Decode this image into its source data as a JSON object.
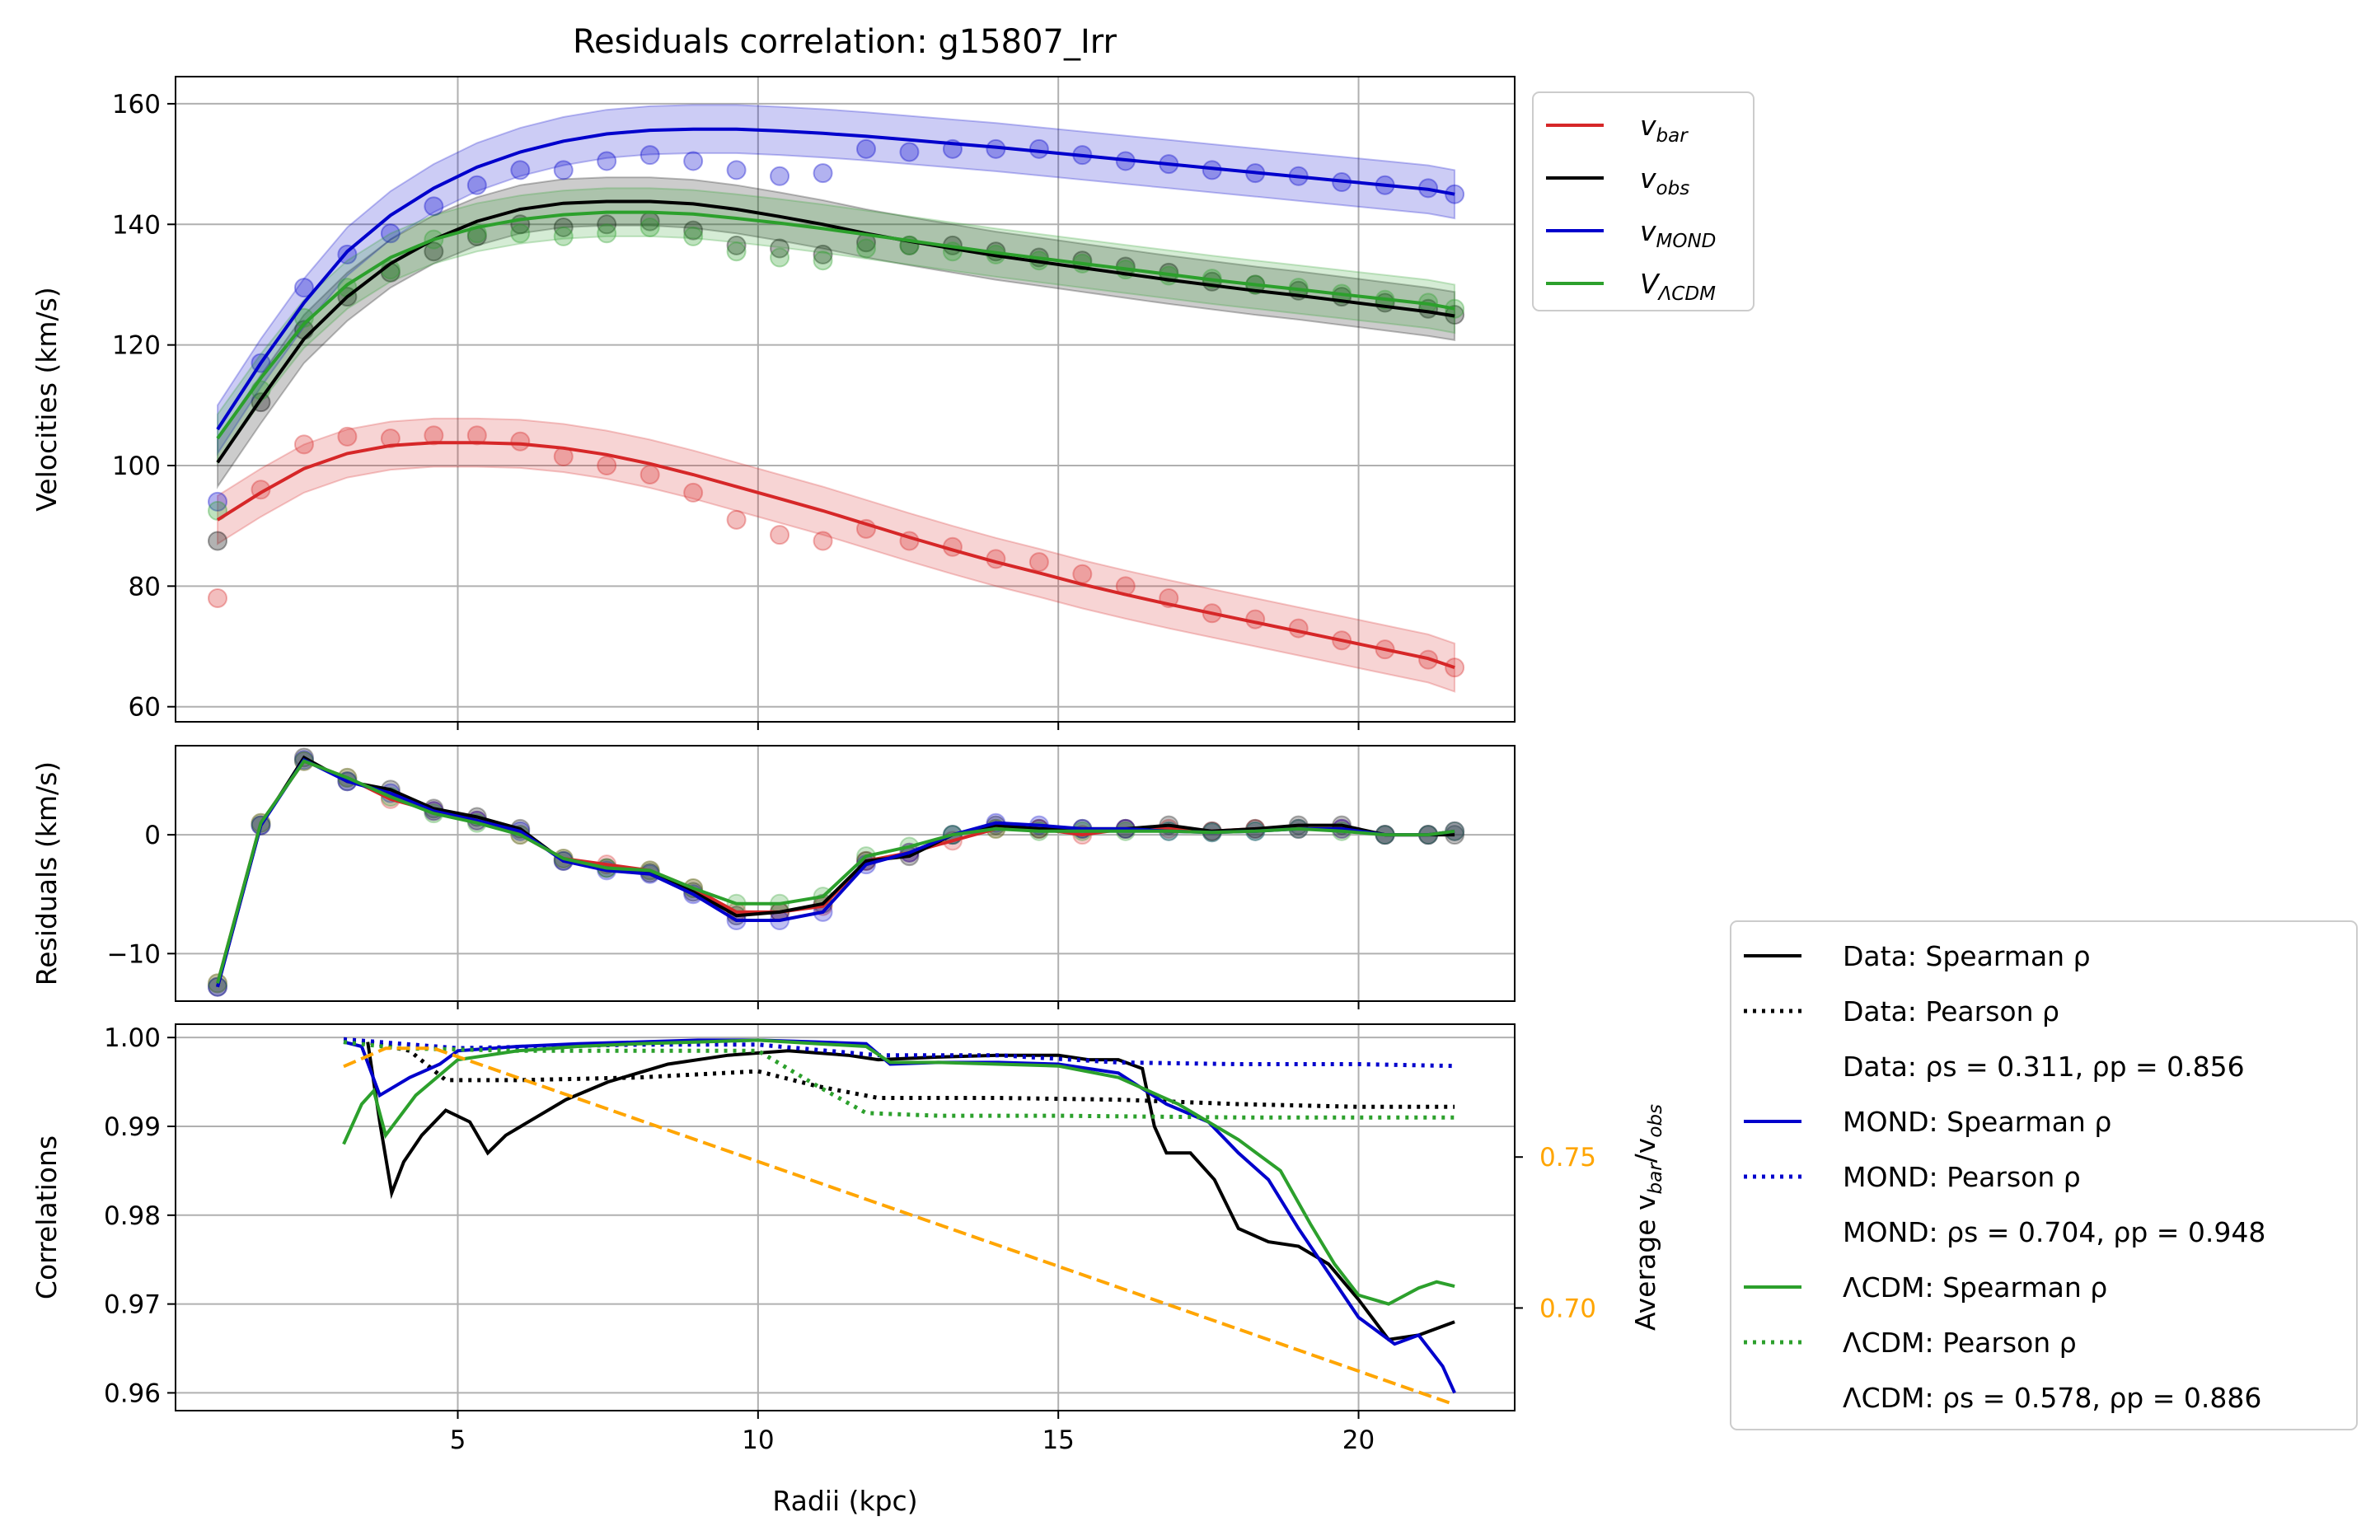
{
  "chart_data": [
    {
      "type": "scatter",
      "panel": "velocities",
      "title": "Residuals correlation: g15807_Irr",
      "xlabel": "",
      "ylabel": "Velocities (km/s)",
      "xlim": [
        0.3,
        22.6
      ],
      "ylim": [
        57.5,
        164.5
      ],
      "yticks": [
        60,
        80,
        100,
        120,
        140,
        160
      ],
      "xticks": [
        5,
        10,
        15,
        20
      ],
      "grid": true,
      "legend_position": "outside-right-top",
      "legend": [
        {
          "series": "vbar",
          "base": "v",
          "sub": "bar",
          "color": "#d62728"
        },
        {
          "series": "vobs",
          "base": "v",
          "sub": "obs",
          "color": "#000000"
        },
        {
          "series": "vmond",
          "base": "v",
          "sub": "MOND",
          "color": "#0000cc"
        },
        {
          "series": "vlcdm",
          "base": "V",
          "sub": "ΛCDM",
          "color": "#2ca02c"
        }
      ],
      "x": [
        1.0,
        1.72,
        2.44,
        3.16,
        3.88,
        4.6,
        5.32,
        6.04,
        6.76,
        7.48,
        8.2,
        8.92,
        9.64,
        10.36,
        11.08,
        11.8,
        12.52,
        13.24,
        13.96,
        14.68,
        15.4,
        16.12,
        16.84,
        17.56,
        18.28,
        19.0,
        19.72,
        20.44,
        21.16,
        21.6
      ],
      "series": [
        {
          "id": "vbar",
          "color": "#d62728",
          "points": [
            78,
            96,
            103.5,
            104.8,
            104.5,
            105,
            105,
            104,
            101.5,
            100,
            98.5,
            95.5,
            91,
            88.5,
            87.5,
            89.5,
            87.5,
            86.5,
            84.5,
            84,
            82,
            80,
            78,
            75.5,
            74.5,
            73,
            71,
            69.5,
            67.8,
            66.5
          ],
          "curve": [
            91,
            95.5,
            99.5,
            102,
            103.3,
            103.8,
            103.8,
            103.6,
            102.9,
            101.8,
            100.3,
            98.5,
            96.5,
            94.5,
            92.5,
            90.3,
            88.1,
            86,
            84,
            82.2,
            80.3,
            78.6,
            77,
            75.5,
            74,
            72.5,
            71,
            69.5,
            68,
            66.5
          ],
          "band": 4
        },
        {
          "id": "vobs",
          "color": "#000000",
          "points": [
            87.5,
            110.5,
            122.5,
            128,
            132,
            135.5,
            138,
            140,
            139.5,
            140,
            140.5,
            139,
            136.5,
            136,
            135,
            137,
            136.5,
            136.5,
            135.5,
            134.5,
            134,
            133,
            132,
            130.5,
            130,
            129,
            128,
            127,
            126,
            125
          ],
          "curve": [
            100.5,
            111,
            121,
            128,
            133.5,
            137.5,
            140.5,
            142.5,
            143.5,
            143.8,
            143.8,
            143.4,
            142.5,
            141.3,
            140,
            138.5,
            137.2,
            136,
            134.8,
            133.8,
            132.8,
            131.8,
            130.8,
            129.9,
            129,
            128.2,
            127.3,
            126.4,
            125.5,
            124.8
          ],
          "band": 4
        },
        {
          "id": "vmond",
          "color": "#0000cc",
          "points": [
            94,
            117,
            129.5,
            135,
            138.5,
            143,
            146.5,
            149,
            149,
            150.5,
            151.5,
            150.5,
            149,
            148,
            148.5,
            152.5,
            152,
            152.5,
            152.5,
            152.5,
            151.5,
            150.5,
            150,
            149,
            148.5,
            148,
            147,
            146.5,
            146,
            145
          ],
          "curve": [
            106,
            117,
            127,
            135.5,
            141.5,
            146,
            149.5,
            152,
            153.8,
            155,
            155.6,
            155.8,
            155.8,
            155.5,
            155.1,
            154.6,
            154,
            153.4,
            152.8,
            152.1,
            151.4,
            150.7,
            150,
            149.3,
            148.6,
            147.9,
            147.2,
            146.5,
            145.8,
            145
          ],
          "band": 4
        },
        {
          "id": "vlcdm",
          "color": "#2ca02c",
          "points": [
            92.5,
            112.5,
            124.5,
            129.5,
            132.5,
            137.5,
            138.5,
            138.5,
            138,
            138.5,
            139.5,
            138,
            135.5,
            134.5,
            134,
            136,
            136.5,
            135.5,
            135,
            134,
            133.5,
            132.5,
            131.5,
            131,
            130,
            129.5,
            128.5,
            127.5,
            127,
            126
          ],
          "curve": [
            104.5,
            114.5,
            123.5,
            130,
            134.5,
            137.5,
            139.5,
            140.8,
            141.6,
            142,
            142,
            141.7,
            141,
            140.2,
            139.3,
            138.3,
            137.3,
            136.3,
            135.3,
            134.4,
            133.5,
            132.6,
            131.7,
            130.8,
            130,
            129.2,
            128.4,
            127.6,
            126.8,
            126
          ],
          "band": 4
        }
      ]
    },
    {
      "type": "scatter",
      "panel": "residuals",
      "xlabel": "",
      "ylabel": "Residuals (km/s)",
      "xlim": [
        0.3,
        22.6
      ],
      "ylim": [
        -14,
        7.5
      ],
      "yticks": [
        -10,
        0
      ],
      "xticks": [
        5,
        10,
        15,
        20
      ],
      "grid": true,
      "x": [
        1.0,
        1.72,
        2.44,
        3.16,
        3.88,
        4.6,
        5.32,
        6.04,
        6.76,
        7.48,
        8.2,
        8.92,
        9.64,
        10.36,
        11.08,
        11.8,
        12.52,
        13.24,
        13.96,
        14.68,
        15.4,
        16.12,
        16.84,
        17.56,
        18.28,
        19.0,
        19.72,
        20.44,
        21.16,
        21.6
      ],
      "points": [
        -12.8,
        1,
        6.5,
        4.5,
        3.2,
        2,
        1,
        0,
        -2,
        -3,
        -3.5,
        -5,
        -7,
        -7,
        -6,
        -2,
        -1.5,
        0,
        1,
        0.5,
        0.3,
        0.5,
        0.5,
        0.2,
        0.5,
        0.5,
        0.5,
        0,
        0,
        0.5
      ],
      "series": [
        {
          "id": "res_bar",
          "color": "#d62728",
          "y": [
            -12.5,
            1,
            6.2,
            4.8,
            3,
            2,
            1.2,
            0,
            -2,
            -2.5,
            -3,
            -4.5,
            -6.5,
            -6.5,
            -6,
            -2.2,
            -1.5,
            -0.5,
            0.5,
            0.5,
            0,
            0.5,
            0.5,
            0.3,
            0.5,
            0.5,
            0.5,
            0,
            0,
            0.3
          ]
        },
        {
          "id": "res_obs",
          "color": "#000000",
          "y": [
            -12.8,
            0.8,
            6.5,
            4.5,
            3.8,
            2.2,
            1.5,
            0.5,
            -2.2,
            -2.8,
            -3.2,
            -4.8,
            -6.8,
            -6.5,
            -5.8,
            -2.2,
            -1.8,
            0,
            0.8,
            0.5,
            0.5,
            0.5,
            0.8,
            0.3,
            0.5,
            0.8,
            0.8,
            0,
            0,
            0
          ]
        },
        {
          "id": "res_mond",
          "color": "#0000cc",
          "y": [
            -12.8,
            0.8,
            6.3,
            4.5,
            3.5,
            2,
            1.2,
            0.3,
            -2.2,
            -3,
            -3.3,
            -5,
            -7.2,
            -7.2,
            -6.5,
            -2.5,
            -1.5,
            0,
            1,
            0.8,
            0.5,
            0.5,
            0.3,
            0.2,
            0.3,
            0.5,
            0.5,
            0,
            0,
            0.3
          ]
        },
        {
          "id": "res_lcdm",
          "color": "#2ca02c",
          "y": [
            -12.5,
            1,
            6.2,
            4.8,
            3.2,
            1.8,
            1,
            0,
            -2,
            -2.8,
            -3,
            -4.5,
            -5.8,
            -5.8,
            -5.2,
            -1.8,
            -1,
            0,
            0.5,
            0.3,
            0.3,
            0.3,
            0.3,
            0.2,
            0.3,
            0.5,
            0.3,
            0,
            0,
            0.3
          ]
        }
      ]
    },
    {
      "type": "line",
      "panel": "correlations",
      "xlabel": "Radii (kpc)",
      "ylabel": "Correlations",
      "ylabel_right": "Average v",
      "ylabel_right_sub1": "bar",
      "ylabel_right_mid": "/v",
      "ylabel_right_sub2": "obs",
      "xlim": [
        0.3,
        22.6
      ],
      "ylim": [
        0.958,
        1.0015
      ],
      "yticks": [
        "1.00",
        "0.99",
        "0.98",
        "0.97",
        "0.96"
      ],
      "ytick_values": [
        1.0,
        0.99,
        0.98,
        0.97,
        0.96
      ],
      "right_ylim": [
        0.666,
        0.794
      ],
      "right_yticks": [
        "0.75",
        "0.70"
      ],
      "right_ytick_values": [
        0.75,
        0.7
      ],
      "right_axis_color": "#ffa500",
      "xticks": [
        5,
        10,
        15,
        20
      ],
      "grid": true,
      "legend_position": "outside-right-bottom",
      "legend": [
        {
          "label": "Data: Spearman ρ",
          "color": "#000000",
          "style": "solid"
        },
        {
          "label": "Data: Pearson ρ",
          "color": "#000000",
          "style": "dotted"
        },
        {
          "label": "Data: ρs = 0.311, ρp = 0.856",
          "color": null,
          "style": "none"
        },
        {
          "label": "MOND: Spearman ρ",
          "color": "#0000cc",
          "style": "solid"
        },
        {
          "label": "MOND: Pearson ρ",
          "color": "#0000cc",
          "style": "dotted"
        },
        {
          "label": "MOND: ρs = 0.704, ρp = 0.948",
          "color": null,
          "style": "none"
        },
        {
          "label": "ΛCDM: Spearman ρ",
          "color": "#2ca02c",
          "style": "solid"
        },
        {
          "label": "ΛCDM: Pearson ρ",
          "color": "#2ca02c",
          "style": "dotted"
        },
        {
          "label": "ΛCDM: ρs = 0.578, ρp = 0.886",
          "color": null,
          "style": "none"
        }
      ],
      "series": [
        {
          "id": "data_spearman",
          "color": "#000000",
          "style": "solid",
          "x": [
            3.5,
            3.7,
            3.9,
            4.1,
            4.4,
            4.8,
            5.2,
            5.5,
            5.8,
            6.3,
            6.8,
            7.5,
            8.5,
            9.5,
            10.5,
            11.5,
            12,
            13,
            14,
            15,
            15.5,
            16,
            16.4,
            16.6,
            16.8,
            17.2,
            17.6,
            18,
            18.5,
            19,
            19.5,
            20,
            20.5,
            21,
            21.6
          ],
          "y": [
            0.9995,
            0.9905,
            0.9825,
            0.986,
            0.989,
            0.9918,
            0.9905,
            0.987,
            0.989,
            0.991,
            0.993,
            0.995,
            0.997,
            0.998,
            0.9985,
            0.998,
            0.9975,
            0.9978,
            0.998,
            0.998,
            0.9975,
            0.9975,
            0.9965,
            0.99,
            0.987,
            0.987,
            0.984,
            0.9785,
            0.977,
            0.9765,
            0.9745,
            0.9705,
            0.966,
            0.9665,
            0.968
          ]
        },
        {
          "id": "data_pearson",
          "color": "#000000",
          "style": "dotted",
          "x": [
            3.1,
            3.5,
            4.2,
            4.8,
            6,
            8,
            10,
            11,
            12,
            14,
            16,
            18,
            20,
            21.6
          ],
          "y": [
            0.9995,
            0.9995,
            0.9985,
            0.9952,
            0.9952,
            0.9955,
            0.9962,
            0.9945,
            0.9932,
            0.9932,
            0.993,
            0.9925,
            0.9922,
            0.9922
          ]
        },
        {
          "id": "mond_spearman",
          "color": "#0000cc",
          "style": "solid",
          "x": [
            3.1,
            3.4,
            3.7,
            4.2,
            4.7,
            5,
            6,
            7,
            8,
            9,
            10,
            11,
            11.8,
            12.2,
            13,
            14,
            15,
            16,
            16.8,
            17.5,
            18,
            18.5,
            19,
            19.5,
            20,
            20.6,
            21,
            21.4,
            21.6
          ],
          "y": [
            0.9995,
            0.999,
            0.9935,
            0.9955,
            0.997,
            0.9985,
            0.999,
            0.9993,
            0.9995,
            0.9997,
            0.9997,
            0.9995,
            0.9993,
            0.997,
            0.9972,
            0.9972,
            0.997,
            0.996,
            0.9925,
            0.9905,
            0.987,
            0.984,
            0.9785,
            0.9735,
            0.9685,
            0.9655,
            0.9665,
            0.963,
            0.96
          ]
        },
        {
          "id": "mond_pearson",
          "color": "#0000cc",
          "style": "dotted",
          "x": [
            3.1,
            5,
            8,
            10,
            12,
            14,
            16,
            18,
            20,
            21.6
          ],
          "y": [
            0.9998,
            0.9988,
            0.9992,
            0.9992,
            0.998,
            0.998,
            0.9972,
            0.997,
            0.997,
            0.9968
          ]
        },
        {
          "id": "lcdm_spearman",
          "color": "#2ca02c",
          "style": "solid",
          "x": [
            3.1,
            3.4,
            3.6,
            3.8,
            4.3,
            5,
            6,
            7,
            8,
            9,
            10,
            11,
            11.8,
            12.2,
            13,
            14,
            15,
            16,
            17,
            18,
            18.7,
            19.2,
            19.6,
            20,
            20.5,
            21,
            21.3,
            21.6
          ],
          "y": [
            0.988,
            0.9925,
            0.994,
            0.989,
            0.9935,
            0.9975,
            0.9985,
            0.999,
            0.9993,
            0.9995,
            0.9997,
            0.9993,
            0.999,
            0.9972,
            0.9972,
            0.997,
            0.9968,
            0.9955,
            0.9925,
            0.9885,
            0.985,
            0.979,
            0.9745,
            0.971,
            0.97,
            0.9718,
            0.9725,
            0.972
          ]
        },
        {
          "id": "lcdm_pearson",
          "color": "#2ca02c",
          "style": "dotted",
          "x": [
            3.1,
            4,
            6,
            8,
            10,
            11,
            11.8,
            13,
            15,
            18,
            20,
            21.6
          ],
          "y": [
            0.9995,
            0.9988,
            0.9985,
            0.9985,
            0.9985,
            0.9945,
            0.9915,
            0.9912,
            0.9912,
            0.991,
            0.991,
            0.991
          ]
        },
        {
          "id": "avg_ratio",
          "color": "#ffa500",
          "style": "dashed",
          "axis": "right",
          "x": [
            3.1,
            3.8,
            4.6,
            21.6
          ],
          "y": [
            0.78,
            0.786,
            0.786,
            0.668
          ]
        }
      ]
    }
  ]
}
